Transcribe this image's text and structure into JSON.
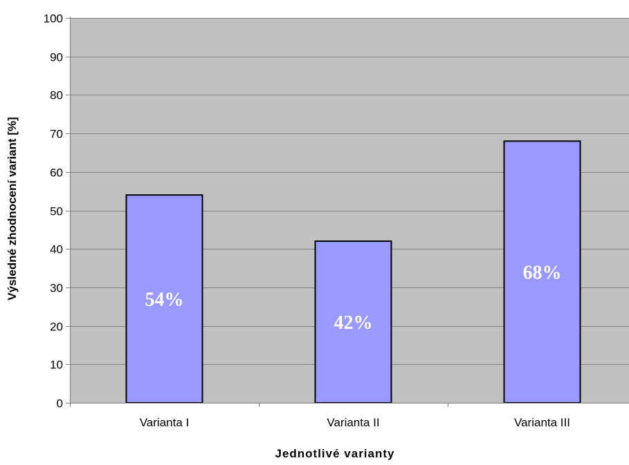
{
  "chart_data": {
    "type": "bar",
    "title": "",
    "xlabel": "Jednotlivé varianty",
    "ylabel": "Výsledné zhodnocení variant [%]",
    "categories": [
      "Varianta I",
      "Varianta II",
      "Varianta III"
    ],
    "values": [
      54,
      42,
      68
    ],
    "data_labels": [
      "54%",
      "42%",
      "68%"
    ],
    "ylim": [
      0,
      100
    ],
    "y_ticks": [
      0,
      10,
      20,
      30,
      40,
      50,
      60,
      70,
      80,
      90,
      100
    ],
    "y_tick_labels": [
      "0",
      "10",
      "20",
      "30",
      "40",
      "50",
      "60",
      "70",
      "80",
      "90",
      "100"
    ],
    "grid": true,
    "legend": "none",
    "colors": {
      "bar_fill": "#9999ff",
      "bar_stroke": "#000000",
      "plot_background": "#c0c0c0",
      "gridline": "#808080",
      "data_label": "#ffffff"
    }
  }
}
